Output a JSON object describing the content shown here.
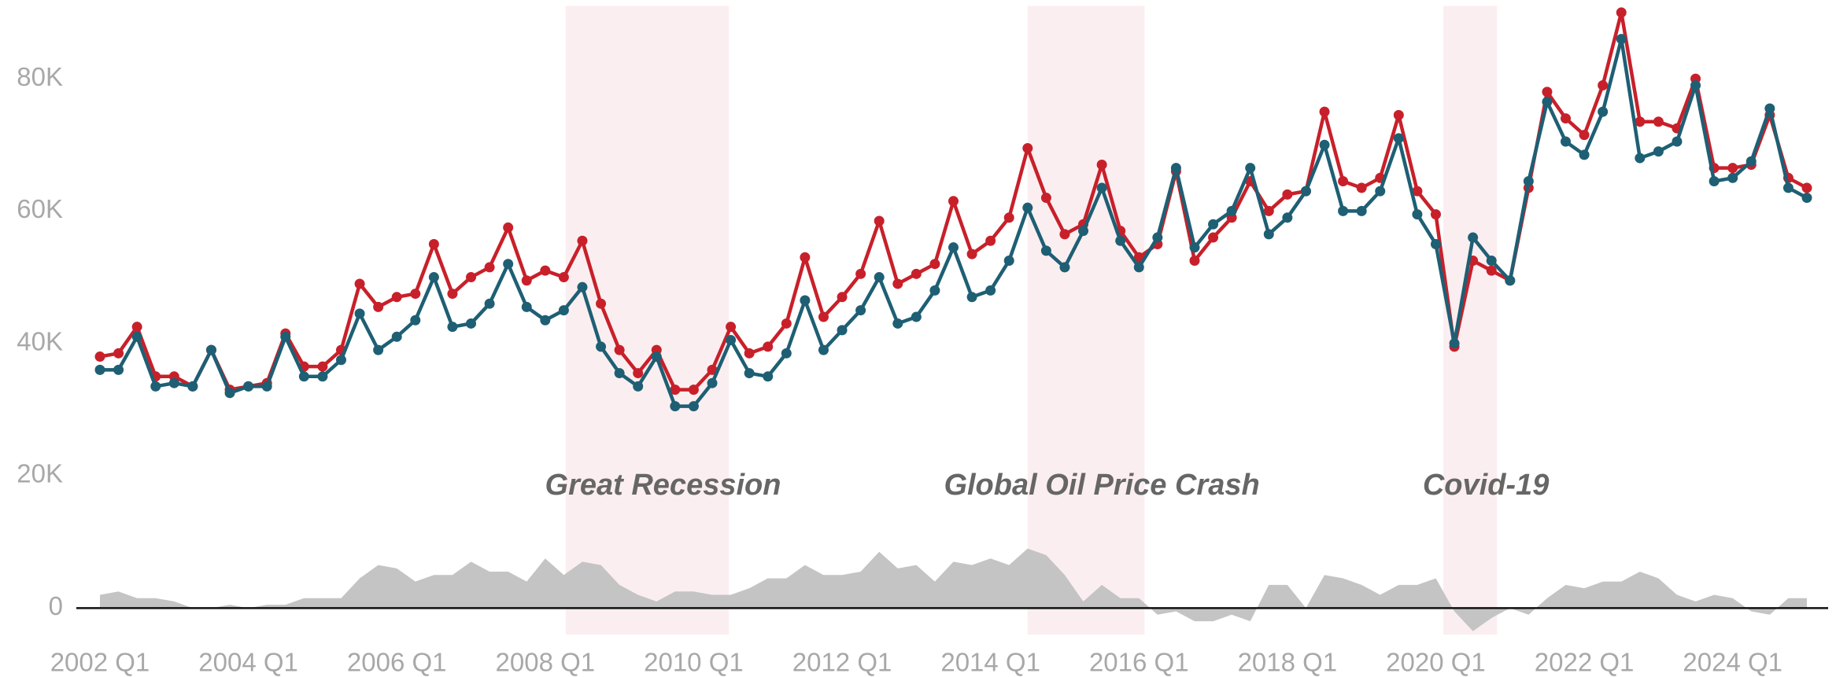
{
  "chart_data": {
    "type": "line",
    "categories": [
      "2002 Q1",
      null,
      null,
      null,
      null,
      null,
      null,
      null,
      "2004 Q1",
      null,
      null,
      null,
      null,
      null,
      null,
      null,
      "2006 Q1",
      null,
      null,
      null,
      null,
      null,
      null,
      null,
      "2008 Q1",
      null,
      null,
      null,
      null,
      null,
      null,
      null,
      "2010 Q1",
      null,
      null,
      null,
      null,
      null,
      null,
      null,
      "2012 Q1",
      null,
      null,
      null,
      null,
      null,
      null,
      null,
      "2014 Q1",
      null,
      null,
      null,
      null,
      null,
      null,
      null,
      "2016 Q1",
      null,
      null,
      null,
      null,
      null,
      null,
      null,
      "2018 Q1",
      null,
      null,
      null,
      null,
      null,
      null,
      null,
      "2020 Q1",
      null,
      null,
      null,
      null,
      null,
      null,
      null,
      "2022 Q1",
      null,
      null,
      null,
      null,
      null,
      null,
      null,
      "2024 Q1",
      null,
      null,
      null,
      null
    ],
    "series": [
      {
        "style": "area",
        "color": "#c4c4c4",
        "values": [
          2000,
          2500,
          1500,
          1500,
          1000,
          0,
          0,
          500,
          0,
          500,
          500,
          1500,
          1500,
          1500,
          4500,
          6500,
          6000,
          4000,
          5000,
          5000,
          7000,
          5500,
          5500,
          4000,
          7500,
          5000,
          7000,
          6500,
          3500,
          2000,
          1000,
          2500,
          2500,
          2000,
          2000,
          3000,
          4500,
          4500,
          6500,
          5000,
          5000,
          5500,
          8500,
          6000,
          6500,
          4000,
          7000,
          6500,
          7500,
          6500,
          9000,
          8000,
          5000,
          1000,
          3500,
          1500,
          1500,
          -1000,
          -500,
          -2000,
          -2000,
          -1000,
          -2000,
          3500,
          3500,
          0,
          5000,
          4500,
          3500,
          2000,
          3500,
          3500,
          4500,
          -500,
          -3500,
          -1500,
          0,
          -1000,
          1500,
          3500,
          3000,
          4000,
          4000,
          5500,
          4500,
          2000,
          1000,
          2000,
          1500,
          -500,
          -1000,
          1500,
          1500
        ]
      },
      {
        "style": "line",
        "color": "#c8202a",
        "values": [
          38000,
          38500,
          42500,
          35000,
          35000,
          33500,
          39000,
          33000,
          33500,
          34000,
          41500,
          36500,
          36500,
          39000,
          49000,
          45500,
          47000,
          47500,
          55000,
          47500,
          50000,
          51500,
          57500,
          49500,
          51000,
          50000,
          55500,
          46000,
          39000,
          35500,
          39000,
          33000,
          33000,
          36000,
          42500,
          38500,
          39500,
          43000,
          53000,
          44000,
          47000,
          50500,
          58500,
          49000,
          50500,
          52000,
          61500,
          53500,
          55500,
          59000,
          69500,
          62000,
          56500,
          58000,
          67000,
          57000,
          53000,
          55000,
          66000,
          52500,
          56000,
          59000,
          64500,
          60000,
          62500,
          63000,
          75000,
          64500,
          63500,
          65000,
          74500,
          63000,
          59500,
          39500,
          52500,
          51000,
          49500,
          63500,
          78000,
          74000,
          71500,
          79000,
          90000,
          73500,
          73500,
          72500,
          80000,
          66500,
          66500,
          67000,
          74500,
          65000,
          63500
        ]
      },
      {
        "style": "line",
        "color": "#1e5f74",
        "values": [
          36000,
          36000,
          41000,
          33500,
          34000,
          33500,
          39000,
          32500,
          33500,
          33500,
          41000,
          35000,
          35000,
          37500,
          44500,
          39000,
          41000,
          43500,
          50000,
          42500,
          43000,
          46000,
          52000,
          45500,
          43500,
          45000,
          48500,
          39500,
          35500,
          33500,
          38000,
          30500,
          30500,
          34000,
          40500,
          35500,
          35000,
          38500,
          46500,
          39000,
          42000,
          45000,
          50000,
          43000,
          44000,
          48000,
          54500,
          47000,
          48000,
          52500,
          60500,
          54000,
          51500,
          57000,
          63500,
          55500,
          51500,
          56000,
          66500,
          54500,
          58000,
          60000,
          66500,
          56500,
          59000,
          63000,
          70000,
          60000,
          60000,
          63000,
          71000,
          59500,
          55000,
          40000,
          56000,
          52500,
          49500,
          64500,
          76500,
          70500,
          68500,
          75000,
          86000,
          68000,
          69000,
          70500,
          79000,
          64500,
          65000,
          67500,
          75500,
          63500,
          62000
        ]
      }
    ],
    "ylim": [
      -4000,
      91000
    ],
    "yticks": [
      0,
      {
        "value": 20000,
        "label": "20K"
      },
      {
        "value": 40000,
        "label": "40K"
      },
      {
        "value": 60000,
        "label": "60K"
      },
      {
        "value": 80000,
        "label": "80K"
      }
    ],
    "grid": false,
    "annotations": [
      {
        "text": "Great Recession",
        "span": [
          25.1,
          33.9
        ],
        "color": "#fbeef0"
      },
      {
        "text": "Global Oil Price Crash",
        "span": [
          50,
          56.3
        ],
        "color": "#fbeef0"
      },
      {
        "text": "Covid-19",
        "span": [
          72.4,
          75.3
        ],
        "color": "#fbeef0"
      }
    ]
  }
}
